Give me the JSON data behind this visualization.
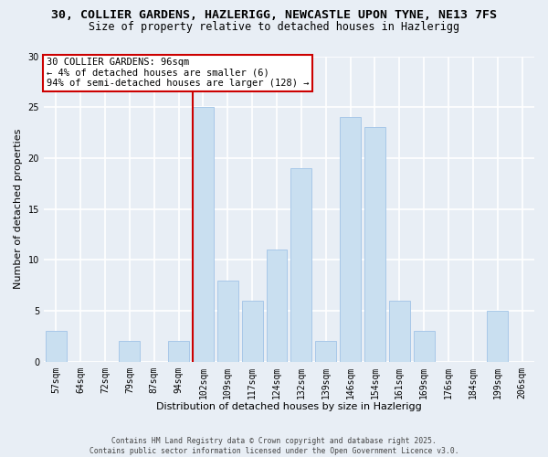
{
  "title_line1": "30, COLLIER GARDENS, HAZLERIGG, NEWCASTLE UPON TYNE, NE13 7FS",
  "title_line2": "Size of property relative to detached houses in Hazlerigg",
  "xlabel": "Distribution of detached houses by size in Hazlerigg",
  "ylabel": "Number of detached properties",
  "categories": [
    "57sqm",
    "64sqm",
    "72sqm",
    "79sqm",
    "87sqm",
    "94sqm",
    "102sqm",
    "109sqm",
    "117sqm",
    "124sqm",
    "132sqm",
    "139sqm",
    "146sqm",
    "154sqm",
    "161sqm",
    "169sqm",
    "176sqm",
    "184sqm",
    "199sqm",
    "206sqm"
  ],
  "values": [
    3,
    0,
    0,
    2,
    0,
    2,
    25,
    8,
    6,
    11,
    19,
    2,
    24,
    23,
    6,
    3,
    0,
    0,
    5,
    0
  ],
  "bar_color": "#c9dff0",
  "bar_edge_color": "#a8c8e8",
  "highlight_bar_index": 6,
  "highlight_line_color": "#cc0000",
  "annotation_text": "30 COLLIER GARDENS: 96sqm\n← 4% of detached houses are smaller (6)\n94% of semi-detached houses are larger (128) →",
  "annotation_box_facecolor": "#ffffff",
  "annotation_box_edgecolor": "#cc0000",
  "ylim": [
    0,
    30
  ],
  "yticks": [
    0,
    5,
    10,
    15,
    20,
    25,
    30
  ],
  "fig_bg_color": "#e8eef5",
  "grid_color": "#ffffff",
  "footnote": "Contains HM Land Registry data © Crown copyright and database right 2025.\nContains public sector information licensed under the Open Government Licence v3.0.",
  "title1_fontsize": 9.5,
  "title2_fontsize": 8.5,
  "ylabel_fontsize": 8,
  "xlabel_fontsize": 8,
  "tick_fontsize": 7,
  "annot_fontsize": 7.5,
  "footnote_fontsize": 5.8
}
